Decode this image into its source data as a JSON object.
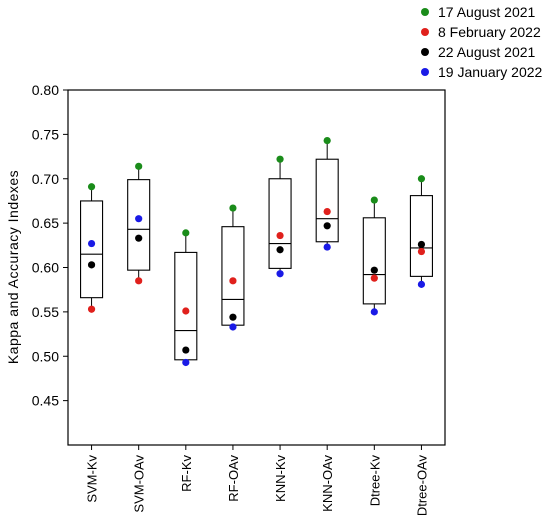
{
  "chart_data": {
    "type": "box",
    "ylabel": "Kappa and Accuracy Indexes",
    "xlabel": "",
    "ylim": [
      0.4,
      0.8
    ],
    "yticks": [
      "0.45",
      "0.50",
      "0.55",
      "0.60",
      "0.65",
      "0.70",
      "0.75",
      "0.80"
    ],
    "categories": [
      "SVM-Kv",
      "SVM-OAv",
      "RF-Kv",
      "RF-OAv",
      "KNN-Kv",
      "KNN-OAv",
      "Dtree-Kv",
      "Dtree-OAv"
    ],
    "boxes": [
      {
        "q1": 0.566,
        "median": 0.615,
        "q3": 0.675
      },
      {
        "q1": 0.597,
        "median": 0.643,
        "q3": 0.699
      },
      {
        "q1": 0.496,
        "median": 0.529,
        "q3": 0.617
      },
      {
        "q1": 0.535,
        "median": 0.564,
        "q3": 0.646
      },
      {
        "q1": 0.599,
        "median": 0.627,
        "q3": 0.7
      },
      {
        "q1": 0.629,
        "median": 0.655,
        "q3": 0.722
      },
      {
        "q1": 0.559,
        "median": 0.592,
        "q3": 0.656
      },
      {
        "q1": 0.59,
        "median": 0.622,
        "q3": 0.681
      }
    ],
    "series": [
      {
        "name": "17 August 2021",
        "color": "#1a8c1a",
        "values": [
          0.691,
          0.714,
          0.639,
          0.667,
          0.722,
          0.743,
          0.676,
          0.7
        ]
      },
      {
        "name": "8 February 2022",
        "color": "#e0201c",
        "values": [
          0.553,
          0.585,
          0.551,
          0.585,
          0.636,
          0.663,
          0.588,
          0.618
        ]
      },
      {
        "name": "22 August 2021",
        "color": "#000000",
        "values": [
          0.603,
          0.633,
          0.507,
          0.544,
          0.62,
          0.647,
          0.597,
          0.626
        ]
      },
      {
        "name": "19 January 2022",
        "color": "#1a1ae6",
        "values": [
          0.627,
          0.655,
          0.493,
          0.533,
          0.593,
          0.623,
          0.55,
          0.581
        ]
      }
    ],
    "legend": "top-right",
    "grid": false
  }
}
